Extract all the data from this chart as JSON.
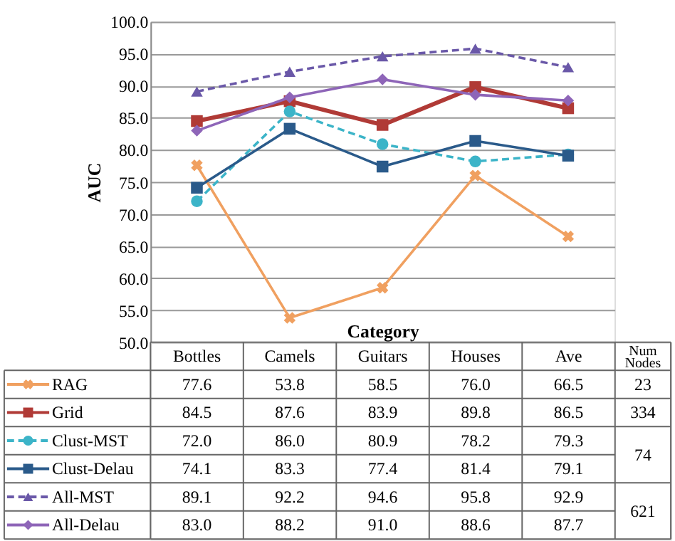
{
  "chart_data": {
    "type": "line",
    "xlabel": "Category",
    "ylabel": "AUC",
    "categories": [
      "Bottles",
      "Camels",
      "Guitars",
      "Houses",
      "Ave"
    ],
    "series": [
      {
        "name": "RAG",
        "color": "#f0a060",
        "marker": "cross",
        "line_style": "solid",
        "values": [
          77.6,
          53.8,
          58.5,
          76.0,
          66.5
        ],
        "value_labels": [
          "77.6",
          "53.8",
          "58.5",
          "76.0",
          "66.5"
        ]
      },
      {
        "name": "Grid",
        "color": "#b03a36",
        "marker": "square",
        "line_style": "solid",
        "values": [
          84.5,
          87.6,
          83.9,
          89.8,
          86.5
        ],
        "value_labels": [
          "84.5",
          "87.6",
          "83.9",
          "89.8",
          "86.5"
        ]
      },
      {
        "name": "Clust-MST",
        "color": "#3cb4c8",
        "marker": "circle",
        "line_style": "dashed",
        "values": [
          72.0,
          86.0,
          80.9,
          78.2,
          79.3
        ],
        "value_labels": [
          "72.0",
          "86.0",
          "80.9",
          "78.2",
          "79.3"
        ]
      },
      {
        "name": "Clust-Delau",
        "color": "#2a5a8a",
        "marker": "square",
        "line_style": "solid",
        "values": [
          74.1,
          83.3,
          77.4,
          81.4,
          79.1
        ],
        "value_labels": [
          "74.1",
          "83.3",
          "77.4",
          "81.4",
          "79.1"
        ]
      },
      {
        "name": "All-MST",
        "color": "#6a58a8",
        "marker": "triangle",
        "line_style": "dashed",
        "values": [
          89.1,
          92.2,
          94.6,
          95.8,
          92.9
        ],
        "value_labels": [
          "89.1",
          "92.2",
          "94.6",
          "95.8",
          "92.9"
        ]
      },
      {
        "name": "All-Delau",
        "color": "#8e65b8",
        "marker": "diamond",
        "line_style": "solid",
        "values": [
          83.0,
          88.2,
          91.0,
          88.6,
          87.7
        ],
        "value_labels": [
          "83.0",
          "88.2",
          "91.0",
          "88.6",
          "87.7"
        ]
      }
    ],
    "ylim": [
      50,
      100
    ],
    "yticks": [
      {
        "value": 50,
        "label": "50.0"
      },
      {
        "value": 55,
        "label": "55.0"
      },
      {
        "value": 60,
        "label": "60.0"
      },
      {
        "value": 65,
        "label": "65.0"
      },
      {
        "value": 70,
        "label": "70.0"
      },
      {
        "value": 75,
        "label": "75.0"
      },
      {
        "value": 80,
        "label": "80.0"
      },
      {
        "value": 85,
        "label": "85.0"
      },
      {
        "value": 90,
        "label": "90.0"
      },
      {
        "value": 95,
        "label": "95.0"
      },
      {
        "value": 100,
        "label": "100.0"
      }
    ],
    "grid": "y",
    "legend": "bottom",
    "annotations": [
      "Num Nodes",
      "23",
      "334",
      "74",
      "621"
    ]
  }
}
